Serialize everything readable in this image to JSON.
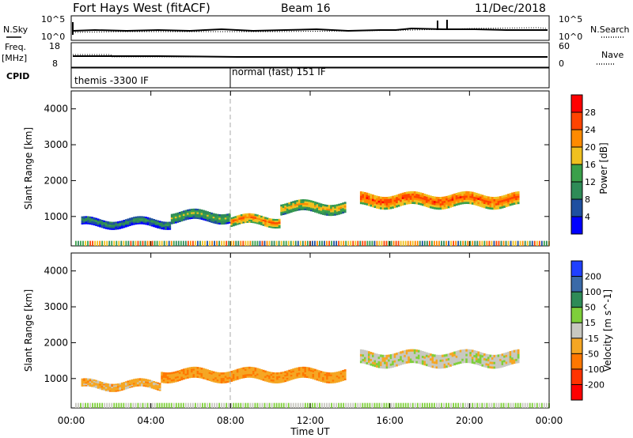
{
  "header": {
    "station": "Fort Hays West (fitACF)",
    "beam": "Beam 16",
    "date": "11/Dec/2018"
  },
  "summary": {
    "nsky_label": "N.Sky",
    "nsearch_label": "N.Search",
    "freq_label": "Freq.",
    "freq_unit": "[MHz]",
    "nave_label": "Nave",
    "cpid_label": "CPID",
    "left_ticks_top": [
      "10^5",
      "10^0"
    ],
    "right_ticks_top": [
      "10^5",
      "10^0"
    ],
    "left_ticks_freq": [
      "18",
      "8"
    ],
    "right_ticks_nave": [
      "60",
      "0"
    ],
    "cpid_segments": [
      {
        "label": "themis -3300 IF",
        "start_hour": 0
      },
      {
        "label": "normal (fast) 151 IF",
        "start_hour": 8
      }
    ]
  },
  "chart_data": [
    {
      "type": "heatmap",
      "ylabel": "Slant Range [km]",
      "xlabel": "Time UT",
      "x_ticks": [
        "00:00",
        "04:00",
        "08:00",
        "12:00",
        "16:00",
        "20:00",
        "00:00"
      ],
      "x_range_hours": [
        0,
        24
      ],
      "y_ticks": [
        1000,
        2000,
        3000,
        4000
      ],
      "ylim": [
        180,
        4500
      ],
      "colorbar_label": "Power [dB]",
      "colorbar_ticks": [
        4,
        8,
        12,
        16,
        20,
        24,
        28
      ],
      "colorbar_colors": [
        "#0000ff",
        "#1e4fa0",
        "#2e8b57",
        "#3aa04a",
        "#f0c020",
        "#ff8a00",
        "#ff4400",
        "#ff0000"
      ],
      "echo_bands": [
        {
          "start_hour": 0.5,
          "end_hour": 5.0,
          "center_km": 820,
          "width_km": 220,
          "level": 12
        },
        {
          "start_hour": 5.0,
          "end_hour": 8.0,
          "center_km": 1000,
          "width_km": 280,
          "level": 16
        },
        {
          "start_hour": 8.0,
          "end_hour": 10.5,
          "center_km": 880,
          "width_km": 260,
          "level": 24
        },
        {
          "start_hour": 10.5,
          "end_hour": 13.8,
          "center_km": 1250,
          "width_km": 300,
          "level": 20
        },
        {
          "start_hour": 14.5,
          "end_hour": 22.5,
          "center_km": 1450,
          "width_km": 350,
          "level": 26
        }
      ]
    },
    {
      "type": "heatmap",
      "ylabel": "Slant Range [km]",
      "xlabel": "Time UT",
      "x_ticks": [
        "00:00",
        "04:00",
        "08:00",
        "12:00",
        "16:00",
        "20:00",
        "00:00"
      ],
      "x_range_hours": [
        0,
        24
      ],
      "y_ticks": [
        1000,
        2000,
        3000,
        4000
      ],
      "ylim": [
        180,
        4500
      ],
      "colorbar_label": "Velocity [m s^-1]",
      "colorbar_ticks": [
        -200,
        -100,
        -50,
        -15,
        15,
        50,
        100,
        200
      ],
      "colorbar_colors": [
        "#ff0000",
        "#ff3300",
        "#ff7700",
        "#f5a623",
        "#c8c8c0",
        "#7ecf3a",
        "#2e8b57",
        "#3a6aa8",
        "#2040ff"
      ],
      "echo_bands": [
        {
          "start_hour": 0.5,
          "end_hour": 4.5,
          "center_km": 820,
          "width_km": 220,
          "velocity": -30
        },
        {
          "start_hour": 4.5,
          "end_hour": 13.8,
          "center_km": 1100,
          "width_km": 300,
          "velocity": -40
        },
        {
          "start_hour": 14.5,
          "end_hour": 22.5,
          "center_km": 1550,
          "width_km": 380,
          "velocity": 0
        }
      ]
    }
  ]
}
